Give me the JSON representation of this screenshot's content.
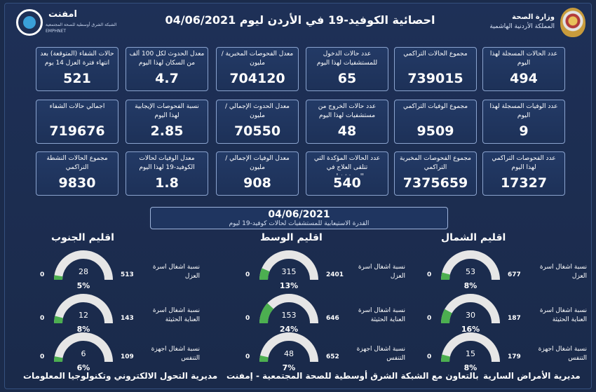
{
  "header": {
    "title": "احصائية الكوفيد-19 في الأردن ليوم  04/06/2021",
    "logo_left": {
      "name": "امفنت",
      "sub1": "الشبكة الشرق أوسطية للصحة المجتمعية",
      "sub2": "EMPHNET"
    },
    "logo_right": {
      "line1": "وزارة الصحة",
      "line2": "المملكة الأردنية الهاشمية"
    }
  },
  "stats": [
    {
      "label": "عدد الحالات المسجلة لهذا اليوم",
      "value": "494"
    },
    {
      "label": "مجموع الحالات التراكمي",
      "value": "739015"
    },
    {
      "label": "عدد حالات الدخول للمستشفيات لهذا اليوم",
      "value": "65"
    },
    {
      "label": "معدل الفحوصات المخبرية /مليون",
      "value": "704120"
    },
    {
      "label": "معدل الحدوث لكل 100 ألف من السكان لهذا اليوم",
      "value": "4.7"
    },
    {
      "label": "حالات الشفاء (المتوقعة) بعد انتهاء فترة العزل 14 يوم",
      "value": "521"
    },
    {
      "label": "عدد الوفيات المسجلة لهذا اليوم",
      "value": "9"
    },
    {
      "label": "مجموع الوفيات التراكمي",
      "value": "9509"
    },
    {
      "label": "عدد حالات الخروج من مستشفيات لهذا اليوم",
      "value": "48"
    },
    {
      "label": "معدل الحدوث الإجمالي /مليون",
      "value": "70550"
    },
    {
      "label": "نسبة الفحوصات الإيجابية لهذا اليوم",
      "value": "2.85"
    },
    {
      "label": "اجمالي حالات الشفاء",
      "value": "719676"
    },
    {
      "label": "عدد الفحوصات التراكمي لهذا اليوم",
      "value": "17327"
    },
    {
      "label": "مجموع الفحوصات المخبرية التراكمي",
      "value": "7375659"
    },
    {
      "label": "عدد الحالات المؤكدة التي تتلقى العلاج في المستشفيات",
      "value": "540"
    },
    {
      "label": "معدل الوفيات الإجمالي /مليون",
      "value": "908"
    },
    {
      "label": "معدل الوفيات لحالات الكوفيد-19 لهذا اليوم",
      "value": "1.8"
    },
    {
      "label": "مجموع الحالات النشطة التراكمي",
      "value": "9830"
    }
  ],
  "banner": {
    "date": "04/06/2021",
    "subtitle": "القدرة الاستيعابية للمستشفيات لحالات كوفيد-19 ليوم"
  },
  "gauge_labels": {
    "isolation": "نسبة اشغال اسرة العزل",
    "icu": "نسبة اشغال اسرة العناية الحثيثة",
    "ventilators": "نسبة اشغال اجهزة التنفس"
  },
  "regions": [
    {
      "name": "اقليم الشمال",
      "gauges": [
        {
          "current": 53,
          "max": 677,
          "percent": "8%",
          "fraction": 0.08
        },
        {
          "current": 30,
          "max": 187,
          "percent": "16%",
          "fraction": 0.16
        },
        {
          "current": 15,
          "max": 179,
          "percent": "8%",
          "fraction": 0.08
        }
      ]
    },
    {
      "name": "اقليم الوسط",
      "gauges": [
        {
          "current": 315,
          "max": 2401,
          "percent": "13%",
          "fraction": 0.13
        },
        {
          "current": 153,
          "max": 646,
          "percent": "24%",
          "fraction": 0.24
        },
        {
          "current": 48,
          "max": 652,
          "percent": "7%",
          "fraction": 0.07
        }
      ]
    },
    {
      "name": "اقليم الجنوب",
      "gauges": [
        {
          "current": 28,
          "max": 513,
          "percent": "5%",
          "fraction": 0.05
        },
        {
          "current": 12,
          "max": 143,
          "percent": "8%",
          "fraction": 0.08
        },
        {
          "current": 6,
          "max": 109,
          "percent": "6%",
          "fraction": 0.06
        }
      ]
    }
  ],
  "gauge_min": "0",
  "footers": {
    "left": "مديرية التحول الالكتروني وتكنولوجيا المعلومات",
    "center": "بالتعاون مع الشبكة الشرق أوسطية للصحة المجتمعية - إمفنت",
    "right": "مديرية الأمراض السارية"
  },
  "colors": {
    "background": "#1b2b4b",
    "gauge_fill": "#4caf50",
    "gauge_track": "#e6e6e6"
  }
}
